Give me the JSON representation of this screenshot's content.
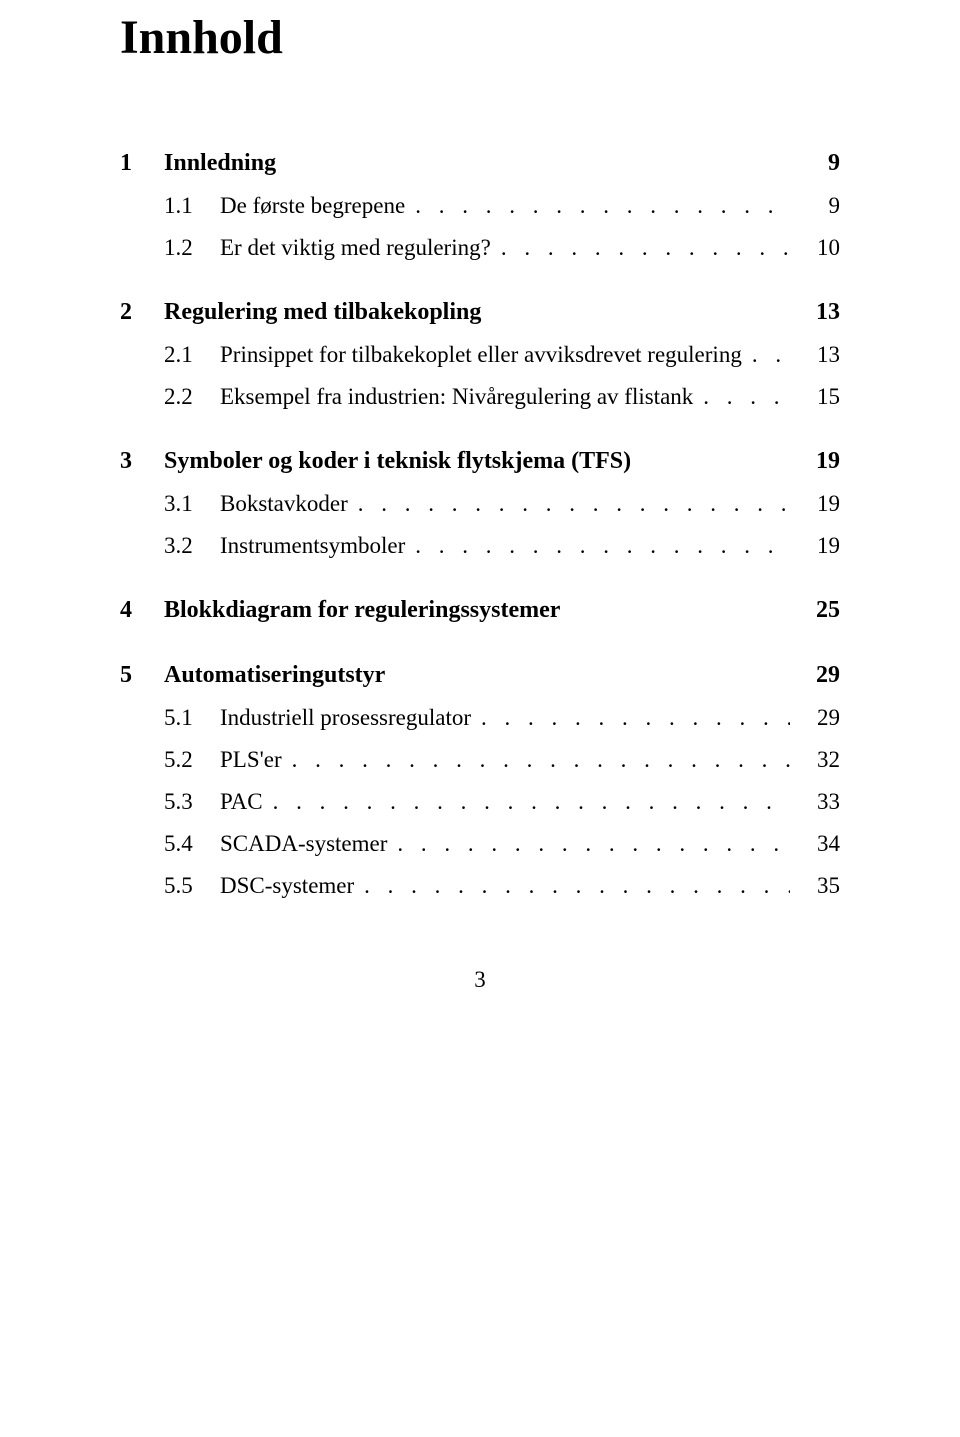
{
  "title": "Innhold",
  "footer_page": "3",
  "leader_dots": ". . . . . . . . . . . . . . . . . . . . . . . . . . . . . . . . . . . . . . . . . . . . . . . . . .",
  "toc": [
    {
      "num": "1",
      "label": "Innledning",
      "page": "9",
      "sections": [
        {
          "num": "1.1",
          "label": "De første begrepene",
          "page": "9"
        },
        {
          "num": "1.2",
          "label": "Er det viktig med regulering?",
          "page": "10"
        }
      ]
    },
    {
      "num": "2",
      "label": "Regulering med tilbakekopling",
      "page": "13",
      "sections": [
        {
          "num": "2.1",
          "label": "Prinsippet for tilbakekoplet eller avviksdrevet regulering",
          "page": "13"
        },
        {
          "num": "2.2",
          "label": "Eksempel fra industrien: Nivåregulering av flistank",
          "page": "15"
        }
      ]
    },
    {
      "num": "3",
      "label": "Symboler og koder i teknisk flytskjema (TFS)",
      "page": "19",
      "sections": [
        {
          "num": "3.1",
          "label": "Bokstavkoder",
          "page": "19"
        },
        {
          "num": "3.2",
          "label": "Instrumentsymboler",
          "page": "19"
        }
      ]
    },
    {
      "num": "4",
      "label": "Blokkdiagram for reguleringssystemer",
      "page": "25",
      "sections": []
    },
    {
      "num": "5",
      "label": "Automatiseringutstyr",
      "page": "29",
      "sections": [
        {
          "num": "5.1",
          "label": "Industriell prosessregulator",
          "page": "29"
        },
        {
          "num": "5.2",
          "label": "PLS'er",
          "page": "32"
        },
        {
          "num": "5.3",
          "label": "PAC",
          "page": "33"
        },
        {
          "num": "5.4",
          "label": "SCADA-systemer",
          "page": "34"
        },
        {
          "num": "5.5",
          "label": "DSC-systemer",
          "page": "35"
        }
      ]
    }
  ]
}
